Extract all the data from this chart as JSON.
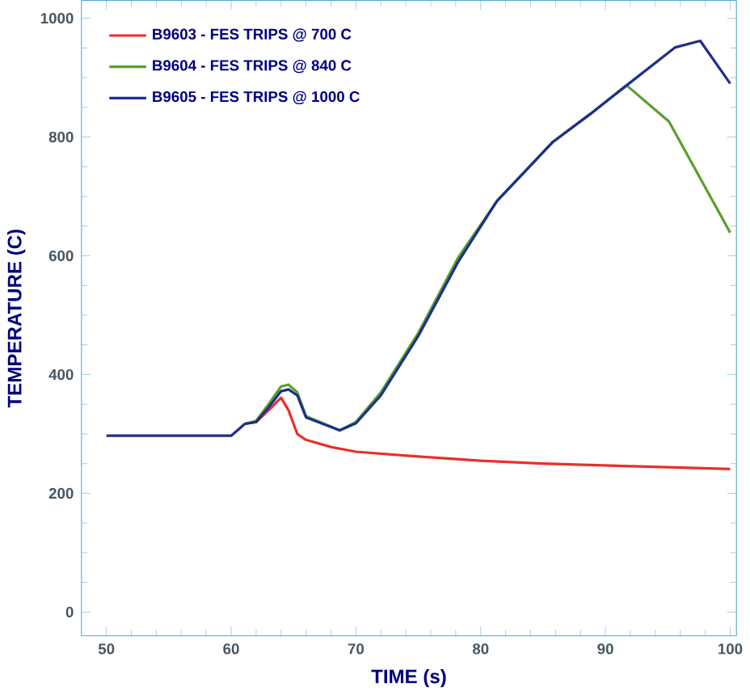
{
  "chart_data": {
    "type": "line",
    "xlabel": "TIME (s)",
    "ylabel": "TEMPERATURE (C)",
    "xlim": [
      48,
      100.5
    ],
    "ylim": [
      -40,
      1030
    ],
    "xticks": [
      50,
      60,
      70,
      80,
      90,
      100
    ],
    "yticks": [
      0,
      200,
      400,
      600,
      800,
      1000
    ],
    "legend": "top left",
    "grid": false,
    "marker": "none",
    "line_style": "solid",
    "series": [
      {
        "name": "B9603 - FES TRIPS @ 700 C",
        "color": "#e8302a",
        "x": [
          61.1,
          62,
          63,
          64,
          64.6,
          65.3,
          66,
          68,
          70,
          75,
          80,
          85,
          90,
          95,
          100
        ],
        "values": [
          317,
          320,
          340,
          361,
          340,
          300,
          290,
          278,
          270,
          262,
          255,
          250,
          247,
          244,
          241
        ]
      },
      {
        "name": "B9604 - FES TRIPS @ 840 C",
        "color": "#5aa02c",
        "x": [
          61.1,
          62,
          63,
          64,
          64.6,
          65.3,
          66,
          68.7,
          70,
          72,
          75,
          78.2,
          81.3,
          85.8,
          88.8,
          91.7,
          95.1,
          100
        ],
        "values": [
          317,
          322,
          350,
          380,
          383,
          370,
          330,
          306,
          320,
          370,
          470,
          597,
          692,
          792,
          839,
          887,
          826,
          639
        ]
      },
      {
        "name": "B9605 - FES TRIPS @ 1000 C",
        "color": "#1f2f8a",
        "x": [
          50,
          55,
          60,
          61.1,
          62,
          63,
          64,
          64.6,
          65.3,
          66,
          68.7,
          70,
          72,
          75,
          78.2,
          81.3,
          85.8,
          88.8,
          91.7,
          95.6,
          97.6,
          100
        ],
        "values": [
          297,
          297,
          297,
          317,
          320,
          345,
          372,
          375,
          365,
          328,
          306,
          318,
          365,
          465,
          590,
          692,
          792,
          839,
          887,
          951,
          962,
          890
        ]
      }
    ]
  }
}
